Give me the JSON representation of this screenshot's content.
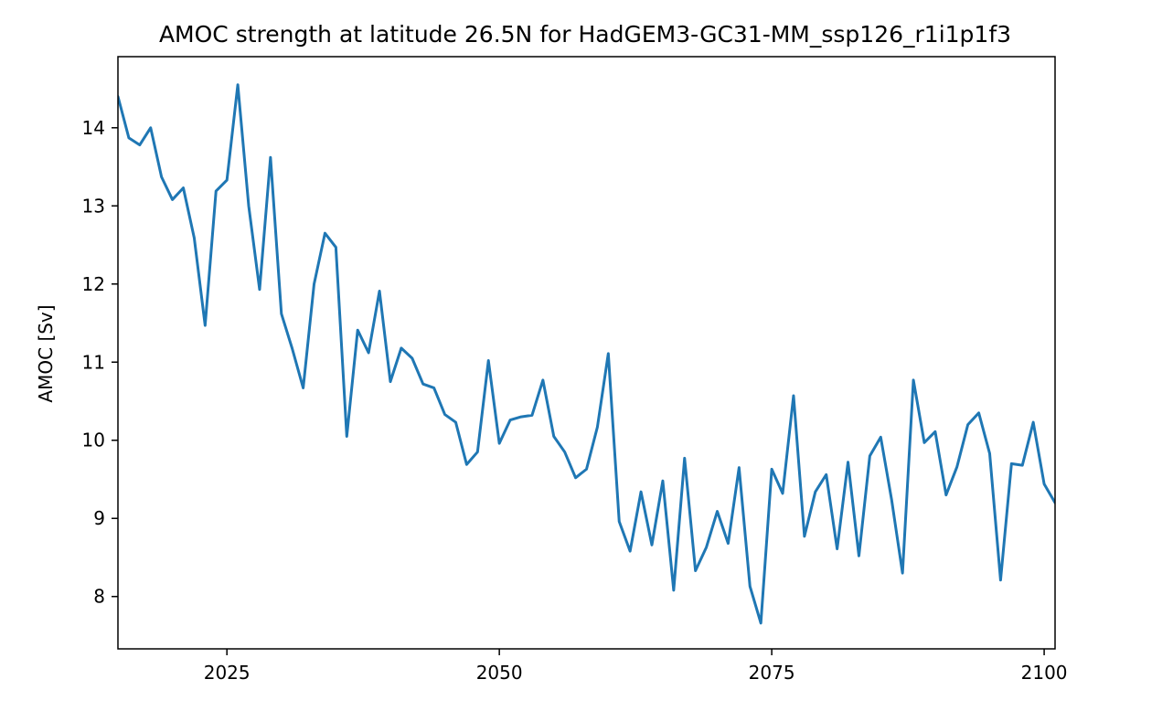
{
  "chart_data": {
    "type": "line",
    "title": "AMOC strength at latitude 26.5N for HadGEM3-GC31-MM_ssp126_r1i1p1f3",
    "xlabel": "",
    "ylabel": "AMOC [Sv]",
    "xlim": [
      2015,
      2101
    ],
    "ylim": [
      7.33,
      14.91
    ],
    "xticks": [
      2025,
      2050,
      2075,
      2100
    ],
    "yticks": [
      8,
      9,
      10,
      11,
      12,
      13,
      14
    ],
    "grid": false,
    "line_color": "#1f77b4",
    "series": [
      {
        "x": [
          2015,
          2016,
          2017,
          2018,
          2019,
          2020,
          2021,
          2022,
          2023,
          2024,
          2025,
          2026,
          2027,
          2028,
          2029,
          2030,
          2031,
          2032,
          2033,
          2034,
          2035,
          2036,
          2037,
          2038,
          2039,
          2040,
          2041,
          2042,
          2043,
          2044,
          2045,
          2046,
          2047,
          2048,
          2049,
          2050,
          2051,
          2052,
          2053,
          2054,
          2055,
          2056,
          2057,
          2058,
          2059,
          2060,
          2061,
          2062,
          2063,
          2064,
          2065,
          2066,
          2067,
          2068,
          2069,
          2070,
          2071,
          2072,
          2073,
          2074,
          2075,
          2076,
          2077,
          2078,
          2079,
          2080,
          2081,
          2082,
          2083,
          2084,
          2085,
          2086,
          2087,
          2088,
          2089,
          2090,
          2091,
          2092,
          2093,
          2094,
          2095,
          2096,
          2097,
          2098,
          2099,
          2100,
          2101
        ],
        "values": [
          14.4,
          13.87,
          13.78,
          14.0,
          13.37,
          13.08,
          13.23,
          12.59,
          11.47,
          13.19,
          13.33,
          14.55,
          13.0,
          11.93,
          13.62,
          11.62,
          11.17,
          10.67,
          12.0,
          12.65,
          12.47,
          10.05,
          11.41,
          11.12,
          11.91,
          10.75,
          11.18,
          11.05,
          10.72,
          10.67,
          10.33,
          10.23,
          9.69,
          9.85,
          11.02,
          9.96,
          10.26,
          10.3,
          10.32,
          10.77,
          10.05,
          9.85,
          9.52,
          9.63,
          10.17,
          11.11,
          8.96,
          8.58,
          9.34,
          8.66,
          9.48,
          8.08,
          9.77,
          8.33,
          8.63,
          9.09,
          8.68,
          9.65,
          8.13,
          7.66,
          9.63,
          9.32,
          10.57,
          8.77,
          9.34,
          9.56,
          8.61,
          9.72,
          8.52,
          9.8,
          10.04,
          9.24,
          8.3,
          10.77,
          9.97,
          10.11,
          9.3,
          9.66,
          10.2,
          10.35,
          9.83,
          8.21,
          9.7,
          9.68,
          10.23,
          9.44,
          9.2
        ]
      }
    ]
  }
}
